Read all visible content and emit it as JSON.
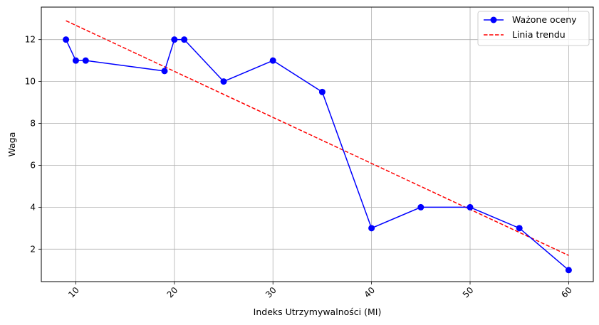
{
  "chart_data": {
    "type": "line",
    "title": "",
    "xlabel": "Indeks Utrzymywalności (MI)",
    "ylabel": "Waga",
    "xlim": [
      6.5,
      62.5
    ],
    "ylim": [
      0.45,
      13.55
    ],
    "xticks": [
      10,
      20,
      30,
      40,
      50,
      60
    ],
    "yticks": [
      2,
      4,
      6,
      8,
      10,
      12
    ],
    "xtick_rotation": 45,
    "grid": true,
    "legend_position": "top-right",
    "series": [
      {
        "name": "Ważone oceny",
        "style": "solid-with-markers",
        "color": "#0000ff",
        "x": [
          9,
          10,
          11,
          19,
          20,
          21,
          25,
          30,
          35,
          40,
          45,
          50,
          55,
          60
        ],
        "y": [
          12,
          11,
          11,
          10.5,
          12,
          12,
          10,
          11,
          9.5,
          3,
          4,
          4,
          3,
          1
        ]
      },
      {
        "name": "Linia trendu",
        "style": "dashed",
        "color": "#ff0000",
        "x": [
          9,
          60
        ],
        "y": [
          12.9,
          1.7
        ]
      }
    ]
  }
}
